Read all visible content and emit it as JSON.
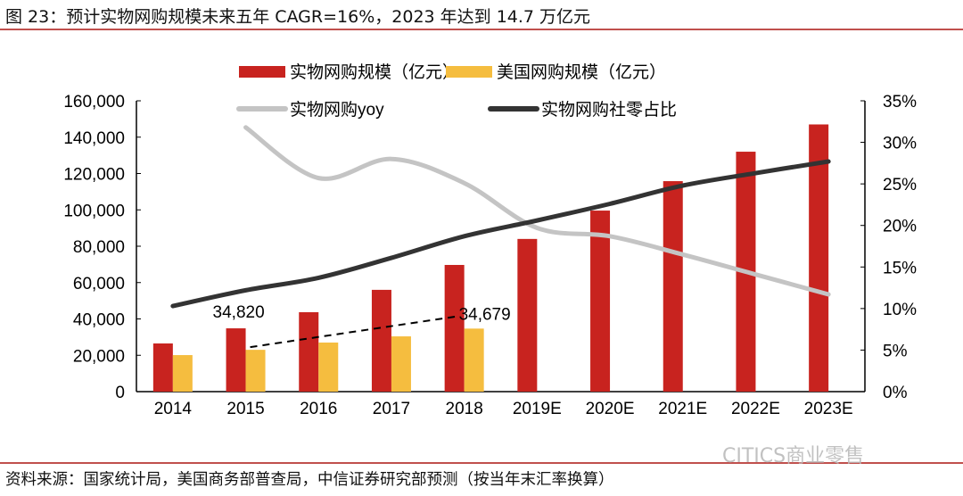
{
  "title": "图 23：预计实物网购规模未来五年 CAGR=16%，2023 年达到 14.7 万亿元",
  "source": "资料来源：国家统计局，美国商务部普查局，中信证券研究部预测（按当年末汇率换算）",
  "watermark": "CITICS商业零售",
  "chart_data": {
    "type": "bar",
    "categories": [
      "2014",
      "2015",
      "2016",
      "2017",
      "2018",
      "2019E",
      "2020E",
      "2021E",
      "2022E",
      "2023E"
    ],
    "y_left": {
      "range": [
        0,
        160000
      ],
      "ticks": [
        "0",
        "20,000",
        "40,000",
        "60,000",
        "80,000",
        "100,000",
        "120,000",
        "140,000",
        "160,000"
      ]
    },
    "y_right": {
      "range": [
        0,
        35
      ],
      "ticks": [
        "0%",
        "5%",
        "10%",
        "15%",
        "20%",
        "25%",
        "30%",
        "35%"
      ]
    },
    "grid": false,
    "legend_position": "top",
    "series": [
      {
        "name": "实物网购规模（亿元）",
        "type": "bar",
        "axis": "left",
        "color": "#c8231f",
        "values": [
          26500,
          34820,
          43700,
          56000,
          69700,
          84000,
          99600,
          115800,
          132000,
          147000
        ]
      },
      {
        "name": "美国网购规模（亿元）",
        "type": "bar",
        "axis": "left",
        "color": "#f5bd3f",
        "values": [
          20100,
          23000,
          27000,
          30400,
          34679,
          null,
          null,
          null,
          null,
          null
        ]
      },
      {
        "name": "实物网购yoy",
        "type": "line",
        "axis": "right",
        "color": "#c4c4c4",
        "values": [
          null,
          31.8,
          25.7,
          28.0,
          25.1,
          19.7,
          18.7,
          16.5,
          14.1,
          11.7
        ]
      },
      {
        "name": "实物网购社零占比",
        "type": "line",
        "axis": "right",
        "color": "#333333",
        "values": [
          10.3,
          12.2,
          13.7,
          16.1,
          18.7,
          20.6,
          22.6,
          24.8,
          26.3,
          27.7
        ]
      }
    ],
    "annotations": [
      {
        "text": "34,820",
        "category": "2015"
      },
      {
        "text": "34,679",
        "category": "2018"
      }
    ]
  }
}
